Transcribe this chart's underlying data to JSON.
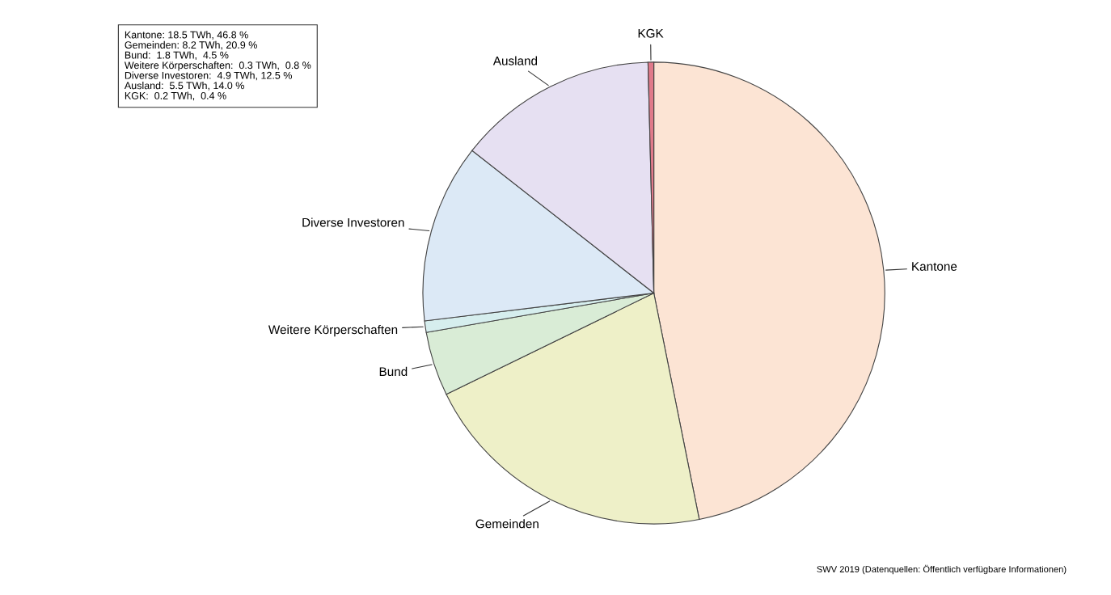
{
  "chart_data": {
    "type": "pie",
    "categories": [
      "Kantone",
      "Gemeinden",
      "Bund",
      "Weitere Körperschaften",
      "Diverse Investoren",
      "Ausland",
      "KGK"
    ],
    "values": [
      46.8,
      20.9,
      4.5,
      0.8,
      12.5,
      14.0,
      0.4
    ],
    "colors": [
      "#fce4d4",
      "#eef0c8",
      "#d9ecd6",
      "#d6eeee",
      "#dce9f6",
      "#e6e0f2",
      "#e07a8a"
    ],
    "annotations": [
      "Kantone: 18.5 TWh, 46.8 %",
      "Gemeinden: 8.2 TWh, 20.9 %",
      "Bund:  1.8 TWh,  4.5 %",
      "Weitere Körperschaften:  0.3 TWh,  0.8 %",
      "Diverse Investoren:  4.9 TWh, 12.5 %",
      "Ausland:  5.5 TWh, 14.0 %",
      "KGK:  0.2 TWh,  0.4 %",
      "SWV 2019 (Datenquellen: Öffentlich verfügbare Informationen)"
    ],
    "legend": false
  }
}
